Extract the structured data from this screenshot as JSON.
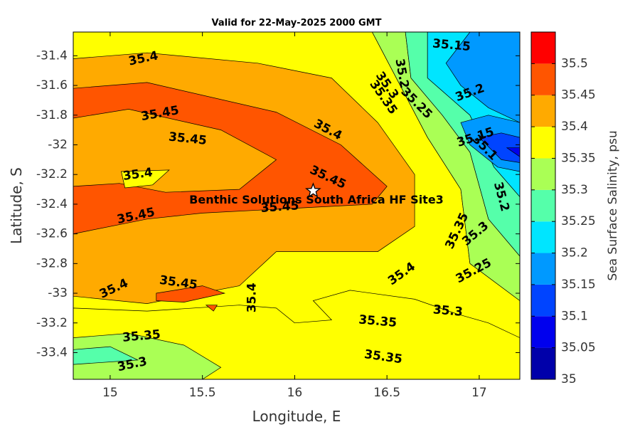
{
  "chart_data": {
    "type": "filled-contour",
    "title": "Valid for 22-May-2025 2000 GMT",
    "xlabel": "Longitude, E",
    "ylabel": "Latitude, S",
    "xlim": [
      14.8,
      17.22
    ],
    "ylim": [
      -33.58,
      -31.24
    ],
    "x_ticks": [
      15,
      15.5,
      16,
      16.5,
      17
    ],
    "x_tick_labels": [
      "15",
      "15.5",
      "16",
      "16.5",
      "17"
    ],
    "y_ticks": [
      -31.4,
      -31.6,
      -31.8,
      -32,
      -32.2,
      -32.4,
      -32.6,
      -32.8,
      -33,
      -33.2,
      -33.4
    ],
    "y_tick_labels": [
      "-31.4",
      "-31.6",
      "-31.8",
      "-32",
      "-32.2",
      "-32.4",
      "-32.6",
      "-32.8",
      "-33",
      "-33.2",
      "-33.4"
    ],
    "colorbar": {
      "label": "Sea Surface Salinity, psu",
      "ticks": [
        "35",
        "35.05",
        "35.1",
        "35.15",
        "35.2",
        "35.25",
        "35.3",
        "35.35",
        "35.4",
        "35.45",
        "35.5"
      ],
      "levels": [
        35.0,
        35.05,
        35.1,
        35.15,
        35.2,
        35.25,
        35.3,
        35.35,
        35.4,
        35.45,
        35.5,
        35.55
      ],
      "colors": [
        "#0000aa",
        "#0000ee",
        "#0044ff",
        "#0099ff",
        "#00e5ff",
        "#55ffaa",
        "#aaff55",
        "#ffff00",
        "#ffaa00",
        "#ff5500",
        "#ff0000"
      ]
    },
    "regions": [
      {
        "level": 35.35,
        "points": [
          [
            14.8,
            -31.24
          ],
          [
            16.42,
            -31.24
          ],
          [
            16.72,
            -31.95
          ],
          [
            16.9,
            -32.3
          ],
          [
            16.95,
            -32.8
          ],
          [
            17.22,
            -33.05
          ],
          [
            17.22,
            -33.58
          ],
          [
            14.8,
            -33.58
          ]
        ]
      },
      {
        "level": 35.3,
        "points": [
          [
            16.42,
            -31.24
          ],
          [
            16.6,
            -31.24
          ],
          [
            16.63,
            -31.55
          ],
          [
            16.8,
            -31.8
          ],
          [
            16.95,
            -32.05
          ],
          [
            17.05,
            -32.5
          ],
          [
            17.22,
            -32.75
          ],
          [
            17.22,
            -33.05
          ],
          [
            16.95,
            -32.8
          ],
          [
            16.9,
            -32.3
          ],
          [
            16.72,
            -31.95
          ]
        ]
      },
      {
        "level": 35.25,
        "points": [
          [
            16.6,
            -31.24
          ],
          [
            16.72,
            -31.24
          ],
          [
            16.72,
            -31.55
          ],
          [
            16.95,
            -31.8
          ],
          [
            17.08,
            -32.15
          ],
          [
            17.22,
            -32.35
          ],
          [
            17.22,
            -32.75
          ],
          [
            17.05,
            -32.5
          ],
          [
            16.95,
            -32.05
          ],
          [
            16.8,
            -31.8
          ],
          [
            16.63,
            -31.55
          ]
        ]
      },
      {
        "level": 35.2,
        "points": [
          [
            16.72,
            -31.24
          ],
          [
            17.22,
            -31.24
          ],
          [
            17.22,
            -32.35
          ],
          [
            17.08,
            -32.15
          ],
          [
            16.95,
            -31.8
          ],
          [
            16.72,
            -31.55
          ]
        ]
      },
      {
        "level": 35.15,
        "points": [
          [
            16.95,
            -31.24
          ],
          [
            17.22,
            -31.24
          ],
          [
            17.22,
            -31.85
          ],
          [
            17.05,
            -31.75
          ],
          [
            16.9,
            -31.6
          ],
          [
            16.82,
            -31.45
          ]
        ]
      },
      {
        "level": 35.15,
        "points": [
          [
            16.9,
            -31.85
          ],
          [
            17.05,
            -31.8
          ],
          [
            17.22,
            -31.85
          ],
          [
            17.22,
            -32.18
          ],
          [
            17.1,
            -32.15
          ],
          [
            16.95,
            -32.0
          ]
        ]
      },
      {
        "level": 35.1,
        "points": [
          [
            17.0,
            -31.95
          ],
          [
            17.12,
            -31.92
          ],
          [
            17.22,
            -31.95
          ],
          [
            17.22,
            -32.12
          ],
          [
            17.12,
            -32.1
          ]
        ]
      },
      {
        "level": 35.05,
        "points": [
          [
            17.15,
            -32.02
          ],
          [
            17.22,
            -32.02
          ],
          [
            17.22,
            -32.08
          ]
        ]
      },
      {
        "level": 35.4,
        "points": [
          [
            14.8,
            -31.42
          ],
          [
            15.2,
            -31.38
          ],
          [
            15.8,
            -31.45
          ],
          [
            16.2,
            -31.55
          ],
          [
            16.45,
            -31.85
          ],
          [
            16.65,
            -32.2
          ],
          [
            16.65,
            -32.55
          ],
          [
            16.45,
            -32.72
          ],
          [
            15.9,
            -32.72
          ],
          [
            15.7,
            -32.95
          ],
          [
            15.2,
            -33.07
          ],
          [
            14.8,
            -33.02
          ]
        ]
      },
      {
        "level": 35.35,
        "points": [
          [
            15.05,
            -32.2
          ],
          [
            15.32,
            -32.17
          ],
          [
            15.22,
            -32.28
          ],
          [
            15.07,
            -32.3
          ]
        ]
      },
      {
        "level": 35.35,
        "points": [
          [
            14.8,
            -33.1
          ],
          [
            15.2,
            -33.12
          ],
          [
            15.7,
            -33.08
          ],
          [
            15.9,
            -33.1
          ],
          [
            16.0,
            -33.2
          ],
          [
            16.2,
            -33.18
          ],
          [
            16.1,
            -33.05
          ],
          [
            16.3,
            -32.98
          ],
          [
            16.65,
            -33.04
          ],
          [
            16.88,
            -33.14
          ],
          [
            17.05,
            -33.2
          ],
          [
            17.22,
            -33.3
          ],
          [
            17.22,
            -33.58
          ],
          [
            14.8,
            -33.58
          ]
        ]
      },
      {
        "level": 35.3,
        "points": [
          [
            14.8,
            -33.3
          ],
          [
            15.1,
            -33.27
          ],
          [
            15.4,
            -33.35
          ],
          [
            15.6,
            -33.5
          ],
          [
            15.5,
            -33.58
          ],
          [
            14.8,
            -33.58
          ]
        ]
      },
      {
        "level": 35.25,
        "points": [
          [
            14.8,
            -33.38
          ],
          [
            15.0,
            -33.36
          ],
          [
            15.15,
            -33.45
          ],
          [
            14.8,
            -33.48
          ]
        ]
      },
      {
        "level": 35.45,
        "points": [
          [
            14.8,
            -31.62
          ],
          [
            15.2,
            -31.58
          ],
          [
            15.9,
            -31.78
          ],
          [
            16.25,
            -32.0
          ],
          [
            16.5,
            -32.28
          ],
          [
            16.42,
            -32.4
          ],
          [
            15.5,
            -32.46
          ],
          [
            15.2,
            -32.5
          ],
          [
            14.8,
            -32.6
          ]
        ]
      },
      {
        "level": 35.4,
        "points": [
          [
            14.8,
            -31.82
          ],
          [
            15.1,
            -31.76
          ],
          [
            15.6,
            -31.9
          ],
          [
            15.9,
            -32.1
          ],
          [
            15.7,
            -32.3
          ],
          [
            15.3,
            -32.32
          ],
          [
            15.05,
            -32.26
          ],
          [
            14.8,
            -32.28
          ]
        ]
      },
      {
        "level": 35.35,
        "points": [
          [
            15.06,
            -32.18
          ],
          [
            15.32,
            -32.17
          ],
          [
            15.23,
            -32.27
          ],
          [
            15.08,
            -32.29
          ]
        ]
      },
      {
        "level": 35.45,
        "points": [
          [
            15.25,
            -33.0
          ],
          [
            15.5,
            -32.95
          ],
          [
            15.62,
            -33.0
          ],
          [
            15.4,
            -33.06
          ],
          [
            15.25,
            -33.05
          ]
        ]
      },
      {
        "level": 35.45,
        "points": [
          [
            15.52,
            -33.08
          ],
          [
            15.58,
            -33.08
          ],
          [
            15.56,
            -33.12
          ]
        ]
      }
    ],
    "contour_labels": [
      {
        "text": "35.4",
        "x": 15.18,
        "y": -31.42,
        "angle": -12
      },
      {
        "text": "35.45",
        "x": 15.27,
        "y": -31.79,
        "angle": -10
      },
      {
        "text": "35.45",
        "x": 15.42,
        "y": -31.96,
        "angle": 6
      },
      {
        "text": "35.4",
        "x": 15.15,
        "y": -32.2,
        "angle": -8
      },
      {
        "text": "35.45",
        "x": 15.14,
        "y": -32.48,
        "angle": -12
      },
      {
        "text": "35.45",
        "x": 15.92,
        "y": -32.42,
        "angle": -4
      },
      {
        "text": "35.45",
        "x": 16.18,
        "y": -32.22,
        "angle": 25
      },
      {
        "text": "35.4",
        "x": 16.18,
        "y": -31.9,
        "angle": 28
      },
      {
        "text": "35.15",
        "x": 16.85,
        "y": -31.33,
        "angle": 5
      },
      {
        "text": "35.2",
        "x": 16.58,
        "y": -31.52,
        "angle": 80
      },
      {
        "text": "35.3",
        "x": 16.5,
        "y": -31.6,
        "angle": 55
      },
      {
        "text": "35.35",
        "x": 16.48,
        "y": -31.68,
        "angle": 55
      },
      {
        "text": "35.25",
        "x": 16.66,
        "y": -31.72,
        "angle": 45
      },
      {
        "text": "35.2",
        "x": 16.95,
        "y": -31.65,
        "angle": -20
      },
      {
        "text": "35.15",
        "x": 16.98,
        "y": -31.95,
        "angle": -18
      },
      {
        "text": "35.1",
        "x": 17.03,
        "y": -32.02,
        "angle": 45
      },
      {
        "text": "35.2",
        "x": 17.12,
        "y": -32.35,
        "angle": 75
      },
      {
        "text": "35.35",
        "x": 16.88,
        "y": -32.58,
        "angle": -65
      },
      {
        "text": "35.3",
        "x": 16.98,
        "y": -32.6,
        "angle": -40
      },
      {
        "text": "35.25",
        "x": 16.97,
        "y": -32.85,
        "angle": -28
      },
      {
        "text": "35.4",
        "x": 16.58,
        "y": -32.87,
        "angle": -35
      },
      {
        "text": "35.4",
        "x": 15.02,
        "y": -32.97,
        "angle": -25
      },
      {
        "text": "35.45",
        "x": 15.37,
        "y": -32.93,
        "angle": 8
      },
      {
        "text": "35.4",
        "x": 15.77,
        "y": -33.03,
        "angle": -90
      },
      {
        "text": "35.35",
        "x": 15.17,
        "y": -33.29,
        "angle": -5
      },
      {
        "text": "35.3",
        "x": 15.12,
        "y": -33.48,
        "angle": -12
      },
      {
        "text": "35.35",
        "x": 16.45,
        "y": -33.19,
        "angle": 5
      },
      {
        "text": "35.3",
        "x": 16.83,
        "y": -33.12,
        "angle": 5
      },
      {
        "text": "35.35",
        "x": 16.48,
        "y": -33.43,
        "angle": 8
      }
    ],
    "site": {
      "name": "Benthic Solutions South Africa HF Site3",
      "x": 16.1,
      "y": -32.31
    }
  }
}
